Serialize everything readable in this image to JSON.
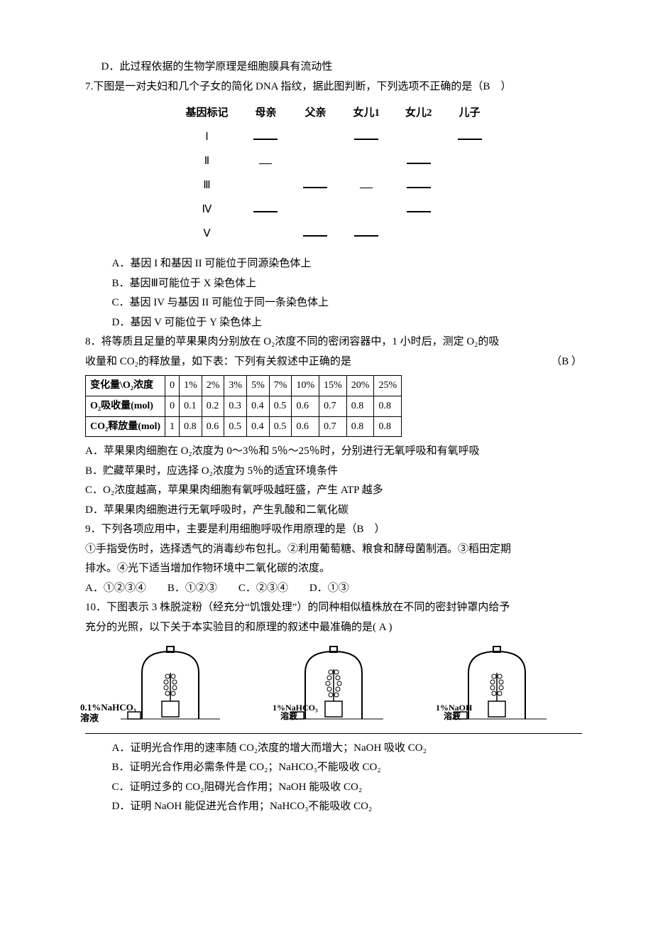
{
  "q6_d": "D．此过程依据的生物学原理是细胞膜具有流动性",
  "q7": {
    "stem": "7.下图是一对夫妇和几个子女的简化 DNA 指纹，据此图判断，下列选项不正确的是（B　）",
    "headers": [
      "基因标记",
      "母亲",
      "父亲",
      "女儿1",
      "女儿2",
      "儿子"
    ],
    "rows": [
      "Ⅰ",
      "Ⅱ",
      "Ⅲ",
      "Ⅳ",
      "Ⅴ"
    ],
    "bands": [
      [
        "long",
        "",
        "long",
        "",
        "long"
      ],
      [
        "short",
        "",
        "",
        "long",
        ""
      ],
      [
        "",
        "long",
        "short",
        "long",
        ""
      ],
      [
        "long",
        "",
        "",
        "long",
        ""
      ],
      [
        "",
        "long",
        "long",
        "",
        ""
      ]
    ],
    "A": "A．基因 I 和基因 II 可能位于同源染色体上",
    "B": "B．基因Ⅲ可能位于 X 染色体上",
    "C": "C．基因 IV 与基因 II 可能位于同一条染色体上",
    "D": "D．基因 V 可能位于 Y 染色体上"
  },
  "q8": {
    "stem_a": "8．将等质且足量的苹果果肉分别放在 O₂浓度不同的密闭容器中，1 小时后，测定 O₂的吸",
    "stem_b": "收量和 CO₂的释放量，如下表：下列有关叙述中正确的是",
    "stem_ans": "（B ）",
    "headers": [
      "变化量\\O₂浓度",
      "0",
      "1%",
      "2%",
      "3%",
      "5%",
      "7%",
      "10%",
      "15%",
      "20%",
      "25%"
    ],
    "row1": [
      "O₂吸收量(mol)",
      "0",
      "0.1",
      "0.2",
      "0.3",
      "0.4",
      "0.5",
      "0.6",
      "0.7",
      "0.8",
      "0.8"
    ],
    "row2": [
      "CO₂释放量(mol)",
      "1",
      "0.8",
      "0.6",
      "0.5",
      "0.4",
      "0.5",
      "0.6",
      "0.7",
      "0.8",
      "0.8"
    ],
    "A": "A．苹果果肉细胞在 O₂浓度为 0～3％和 5％～25％时，分别进行无氧呼吸和有氧呼吸",
    "B": "B．贮藏苹果时，应选择 O₂浓度为 5％的适宜环境条件",
    "C": "C．O₂浓度越高，苹果果肉细胞有氧呼吸越旺盛，产生 ATP 越多",
    "D": "D．苹果果肉细胞进行无氧呼吸时，产生乳酸和二氧化碳"
  },
  "q9": {
    "stem": "9．下列各项应用中，主要是利用细胞呼吸作用原理的是（B　）",
    "l1": "①手指受伤时，选择透气的消毒纱布包扎。②利用葡萄糖、粮食和酵母菌制酒。③稻田定期",
    "l2": "排水。④光下适当增加作物环境中二氧化碳的浓度。",
    "opts": "A．①②③④　　B．①②③　　C．②③④　　D．①③"
  },
  "q10": {
    "stem_a": "10．下图表示 3 株脱淀粉（经充分“饥饿处理”）的同种相似植株放在不同的密封钟罩内给予",
    "stem_b": "充分的光照，以下关于本实验目的和原理的叙述中最准确的是( A )",
    "jar_labels": [
      {
        "sol_a": "0.1%NaHCO₃",
        "sol_b": "溶液",
        "bottom": "1%NaHCO₃",
        "bottom2": "溶液"
      },
      {
        "sol_a": "",
        "sol_b": "",
        "bottom": "1%NaHCO₃",
        "bottom2": "溶液"
      },
      {
        "sol_a": "",
        "sol_b": "",
        "bottom": "1%NaOH",
        "bottom2": "溶液"
      }
    ],
    "A": "A．证明光合作用的速率随 CO₂浓度的增大而增大；NaOH 吸收 CO₂",
    "B": "B．证明光合作用必需条件是 CO₂；NaHCO₃不能吸收 CO₂",
    "C": "C．证明过多的 CO₂阻碍光合作用；NaOH 能吸收 CO₂",
    "D": "D．证明 NaOH 能促进光合作用；NaHCO₃不能吸收 CO₂"
  }
}
